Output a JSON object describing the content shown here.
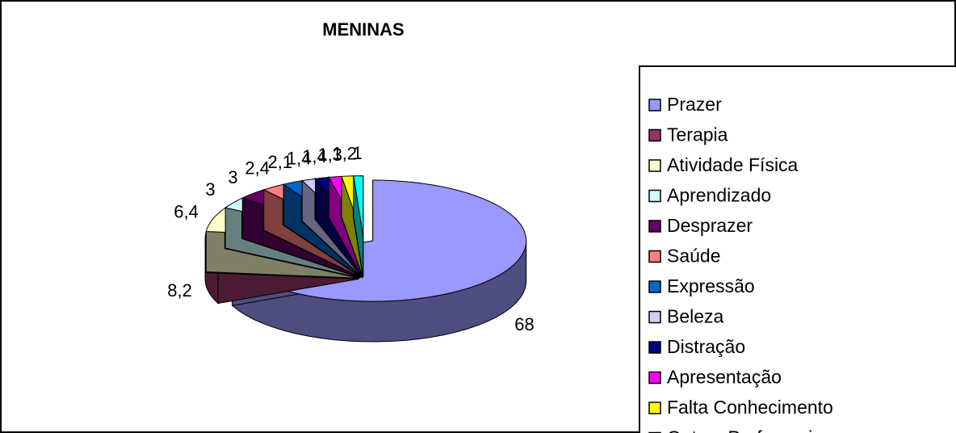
{
  "chart_data": {
    "type": "pie",
    "title": "MENINAS",
    "categories": [
      "Prazer",
      "Terapia",
      "Atividade Física",
      "Aprendizado",
      "Desprazer",
      "Saúde",
      "Expressão",
      "Beleza",
      "Distração",
      "Apresentação",
      "Falta Conhecimento",
      "Outras Preferencias"
    ],
    "values": [
      68,
      8.2,
      6.4,
      3,
      3,
      2.4,
      2.1,
      1.4,
      1.4,
      1.3,
      1.2,
      1
    ],
    "value_labels": [
      "68",
      "8,2",
      "6,4",
      "3",
      "3",
      "2,4",
      "2,1",
      "1,4",
      "1,4",
      "1,3",
      "1,2",
      "1"
    ],
    "colors": [
      "#9999ff",
      "#993366",
      "#ffffcc",
      "#ccffff",
      "#660066",
      "#ff8080",
      "#0066cc",
      "#ccccff",
      "#000080",
      "#ff00ff",
      "#ffff00",
      "#00ffff"
    ],
    "legend": "right"
  }
}
